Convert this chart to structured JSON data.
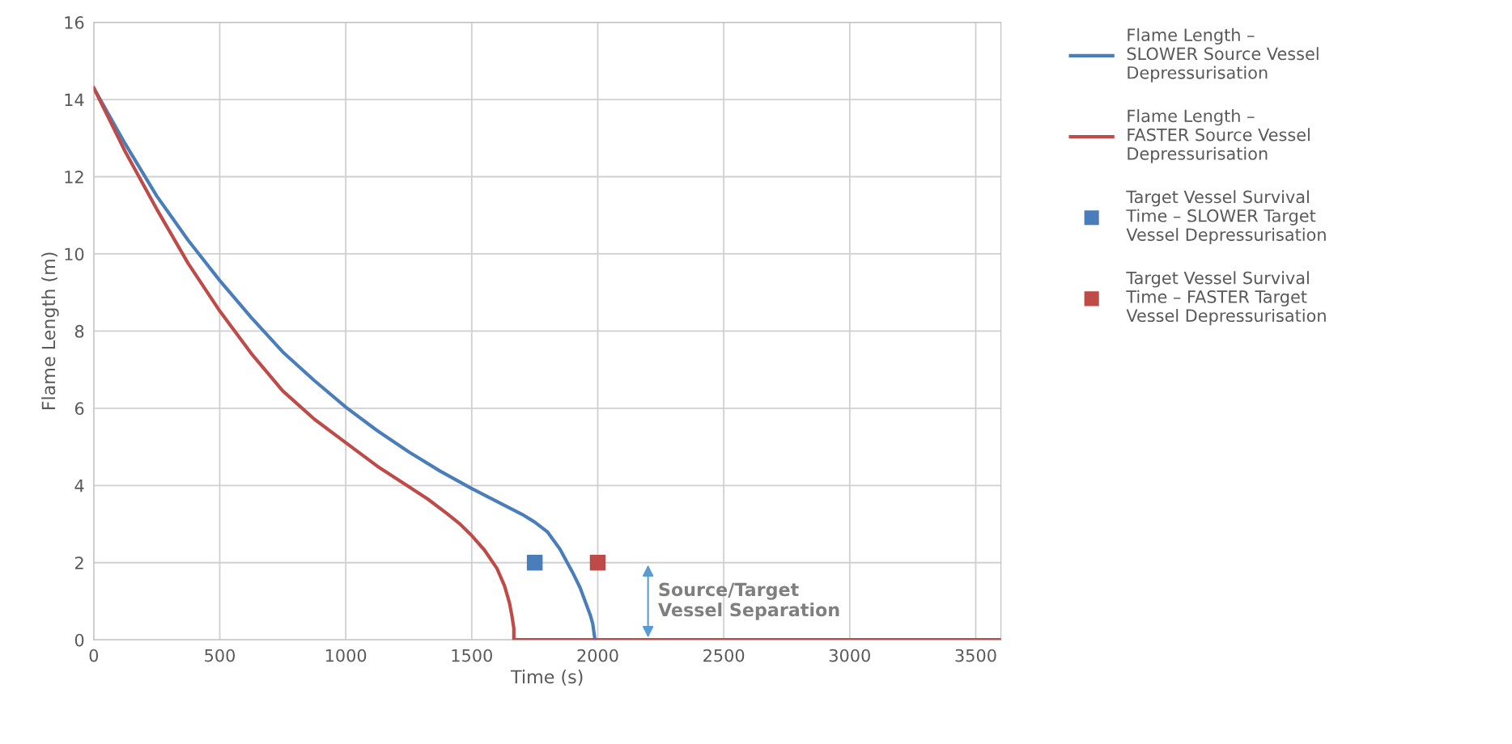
{
  "chart_data": {
    "type": "line",
    "xlabel": "Time (s)",
    "ylabel": "Flame Length (m)",
    "xlim": [
      0,
      3600
    ],
    "xticks": [
      0,
      500,
      1000,
      1500,
      2000,
      2500,
      3000,
      3500
    ],
    "ylim": [
      0,
      16
    ],
    "yticks": [
      0,
      2,
      4,
      6,
      8,
      10,
      12,
      14,
      16
    ],
    "grid": true,
    "legend": "right",
    "series": [
      {
        "name": "Flame Length –\nSLOWER Source Vessel\nDepressurisation",
        "color": "#4a7ebb",
        "marker": "none",
        "x": [
          0,
          125,
          250,
          375,
          500,
          625,
          750,
          875,
          1000,
          1125,
          1250,
          1375,
          1500,
          1625,
          1700,
          1750,
          1800,
          1850,
          1900,
          1930,
          1950,
          1970,
          1980,
          1989
        ],
        "values": [
          14.3,
          12.85,
          11.5,
          10.35,
          9.31,
          8.35,
          7.46,
          6.72,
          6.03,
          5.42,
          4.87,
          4.37,
          3.92,
          3.5,
          3.25,
          3.05,
          2.8,
          2.35,
          1.75,
          1.35,
          1.0,
          0.65,
          0.42,
          0
        ]
      },
      {
        "name": "Flame Length –\nFASTER Source Vessel\nDepressurisation",
        "color": "#be4b48",
        "marker": "none",
        "x": [
          0,
          125,
          250,
          375,
          500,
          625,
          750,
          875,
          1000,
          1125,
          1250,
          1325,
          1400,
          1450,
          1500,
          1550,
          1600,
          1630,
          1650,
          1660,
          1667,
          1667,
          3600
        ],
        "values": [
          14.3,
          12.65,
          11.16,
          9.75,
          8.52,
          7.42,
          6.45,
          5.72,
          5.11,
          4.5,
          3.97,
          3.65,
          3.28,
          3.02,
          2.7,
          2.33,
          1.85,
          1.4,
          0.95,
          0.6,
          0.3,
          0,
          0
        ]
      },
      {
        "type": "scatter",
        "name": "Target Vessel Survival\nTime – SLOWER Target\nVessel Depressurisation",
        "color": "#4a7ebb",
        "marker": "square",
        "x": [
          1750
        ],
        "values": [
          2
        ]
      },
      {
        "type": "scatter",
        "name": "Target Vessel Survival\nTime – FASTER Target\nVessel Depressurisation",
        "color": "#be4b48",
        "marker": "square",
        "x": [
          2000
        ],
        "values": [
          2
        ]
      }
    ],
    "annotations": [
      "Source/Target\nVessel Separation"
    ]
  }
}
